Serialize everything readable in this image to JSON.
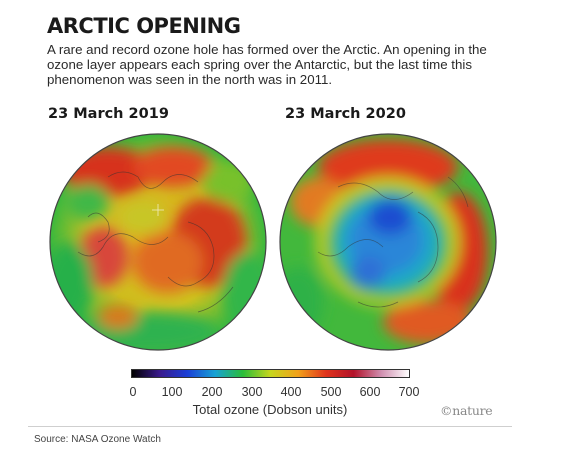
{
  "header": {
    "title": "ARCTIC OPENING",
    "description": "A rare and record ozone hole has formed over the Arctic. An opening in the ozone layer appears each spring over the Antarctic, but the last time this phenomenon was seen in the north was in 2011."
  },
  "maps": [
    {
      "label": "23 March 2019",
      "ozone_pattern": "high ozone over the pole (red-orange), green-yellow margins"
    },
    {
      "label": "23 March 2020",
      "ozone_pattern": "low ozone hole over the pole (blue), red ring around it"
    }
  ],
  "color_scale": {
    "label": "Total ozone (Dobson units)",
    "ticks": [
      "0",
      "100",
      "200",
      "300",
      "400",
      "500",
      "600",
      "700"
    ],
    "colors": [
      "#000000",
      "#3a1a8c",
      "#1b3fd6",
      "#17a2d4",
      "#2bbd3a",
      "#c7d61e",
      "#f2a11a",
      "#e0341c",
      "#b2122a",
      "#d08fb0",
      "#ffffff"
    ]
  },
  "brand": "©nature",
  "source": "Source: NASA Ozone Watch"
}
